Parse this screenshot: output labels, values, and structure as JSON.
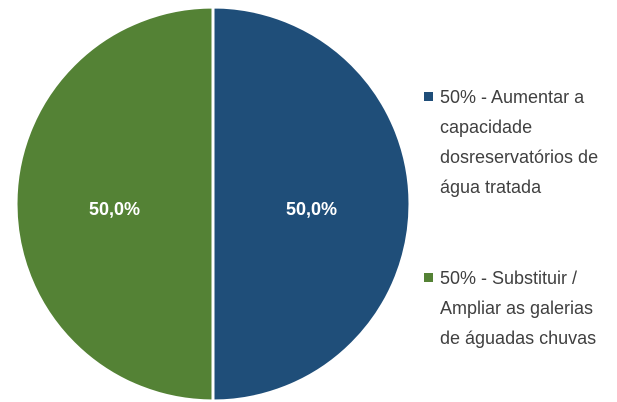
{
  "chart_data": {
    "type": "pie",
    "categories": [
      "50% - Aumentar a capacidade dosreservatórios de água tratada",
      "50% - Substituir / Ampliar as galerias de águadas chuvas"
    ],
    "values": [
      50,
      50
    ],
    "value_labels": [
      "50,0%",
      "50,0%"
    ],
    "colors": [
      "#1f4e79",
      "#548235"
    ],
    "legend": "right"
  }
}
